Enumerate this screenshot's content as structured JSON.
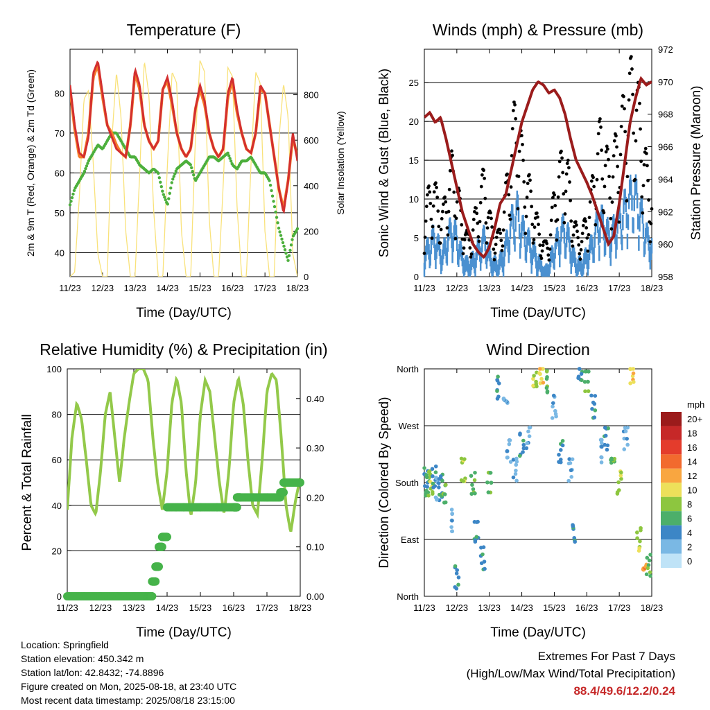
{
  "chart_data": [
    {
      "type": "line",
      "title": "Temperature (F)",
      "xlabel": "Time (Day/UTC)",
      "ylabel": "2m & 9m T (Red, Orange) & 2m Td (Green)",
      "y2label": "Solar Insolation (Yellow)",
      "x_ticks": [
        "11/23",
        "12/23",
        "13/23",
        "14/23",
        "15/23",
        "16/23",
        "17/23",
        "18/23"
      ],
      "ylim": [
        34,
        91
      ],
      "yticks": [
        40,
        50,
        60,
        70,
        80
      ],
      "y2lim": [
        0,
        1000
      ],
      "y2ticks": [
        0,
        200,
        400,
        600,
        800
      ],
      "grid": true,
      "colors": {
        "t2m": "#d32f2f",
        "t9m": "#f57c2a",
        "td2m": "#4caf3c",
        "solar": "#f9e27a"
      },
      "series": [
        {
          "axis": "left",
          "values": [
            82,
            72,
            65,
            64,
            69,
            85,
            88,
            80,
            72,
            69,
            66,
            65,
            64,
            72,
            86,
            82,
            72,
            68,
            66,
            68,
            81,
            84,
            78,
            70,
            66,
            64,
            66,
            76,
            82,
            78,
            70,
            66,
            64,
            66,
            80,
            84,
            76,
            70,
            66,
            65,
            70,
            82,
            80,
            72,
            64,
            56,
            50,
            58,
            70,
            63
          ]
        },
        {
          "axis": "left",
          "values": [
            81,
            71,
            64,
            64,
            70,
            84,
            87,
            79,
            72,
            70,
            67,
            65,
            64,
            72,
            85,
            81,
            72,
            68,
            66,
            68,
            81,
            83,
            77,
            70,
            66,
            64,
            66,
            76,
            81,
            77,
            70,
            66,
            64,
            66,
            79,
            83,
            75,
            70,
            66,
            65,
            70,
            81,
            80,
            72,
            64,
            56,
            51,
            58,
            69,
            64
          ]
        },
        {
          "axis": "left",
          "values": [
            52,
            56,
            58,
            60,
            63,
            65,
            67,
            66,
            68,
            70,
            70,
            68,
            66,
            64,
            64,
            62,
            61,
            60,
            61,
            60,
            55,
            52,
            58,
            61,
            62,
            63,
            62,
            58,
            60,
            62,
            64,
            64,
            63,
            64,
            65,
            62,
            61,
            63,
            63,
            64,
            62,
            60,
            60,
            58,
            52,
            46,
            42,
            38,
            44,
            46
          ]
        },
        {
          "axis": "right",
          "values": [
            0,
            20,
            350,
            780,
            820,
            500,
            100,
            0,
            0,
            600,
            900,
            700,
            200,
            0,
            0,
            450,
            950,
            800,
            300,
            0,
            0,
            500,
            900,
            850,
            200,
            0,
            0,
            600,
            950,
            900,
            250,
            0,
            0,
            400,
            920,
            880,
            300,
            0,
            0,
            500,
            900,
            850,
            200,
            0,
            0,
            600,
            850,
            700,
            100,
            0
          ]
        }
      ]
    },
    {
      "type": "scatter",
      "title": "Winds (mph) & Pressure (mb)",
      "xlabel": "Time (Day/UTC)",
      "ylabel": "Sonic Wind & Gust (Blue, Black)",
      "y2label": "Station Pressure (Maroon)",
      "x_ticks": [
        "11/23",
        "12/23",
        "13/23",
        "14/23",
        "15/23",
        "16/23",
        "17/23",
        "18/23"
      ],
      "ylim": [
        0,
        29.3
      ],
      "yticks": [
        0,
        5,
        10,
        15,
        20,
        25
      ],
      "y2lim": [
        958,
        972
      ],
      "y2ticks": [
        958,
        960,
        962,
        964,
        966,
        968,
        970,
        972
      ],
      "grid": true,
      "colors": {
        "wind": "#4a90d0",
        "gust": "#000000",
        "pressure": "#9b1c1c"
      },
      "series": [
        {
          "axis": "left",
          "values": [
            3,
            4,
            5,
            4,
            3,
            5,
            6,
            5,
            3,
            2,
            2,
            3,
            4,
            5,
            3,
            2,
            2,
            3,
            5,
            7,
            8,
            6,
            5,
            4,
            3,
            2,
            1,
            2,
            4,
            5,
            6,
            5,
            3,
            2,
            2,
            3,
            4,
            6,
            7,
            6,
            5,
            6,
            7,
            8,
            9,
            10,
            9,
            7,
            5,
            4
          ]
        },
        {
          "axis": "left",
          "values": [
            6,
            8,
            9,
            7,
            6,
            9,
            11,
            9,
            6,
            4,
            4,
            6,
            8,
            10,
            6,
            4,
            4,
            6,
            10,
            14,
            17,
            12,
            10,
            8,
            6,
            4,
            3,
            4,
            8,
            10,
            12,
            10,
            6,
            4,
            4,
            6,
            8,
            12,
            14,
            12,
            10,
            12,
            14,
            16,
            18,
            20,
            17,
            14,
            10,
            8
          ]
        },
        {
          "axis": "right",
          "values": [
            967.8,
            968.1,
            967.5,
            967.8,
            966.5,
            965,
            963.5,
            962,
            961,
            960,
            959.5,
            959.2,
            959.8,
            961,
            962.5,
            963,
            964.5,
            966,
            967.5,
            968.5,
            969.5,
            970,
            969.8,
            969.3,
            969.5,
            969,
            968,
            966.5,
            965.2,
            964.5,
            963.8,
            963,
            962,
            961,
            960,
            960.5,
            962.5,
            965,
            967.5,
            969,
            970.2,
            969.8,
            970
          ]
        }
      ]
    },
    {
      "type": "line",
      "title": "Relative Humidity (%) & Precipitation (in)",
      "xlabel": "Time (Day/UTC)",
      "ylabel": "Percent & Total Rainfall",
      "x_ticks": [
        "11/23",
        "12/23",
        "13/23",
        "14/23",
        "15/23",
        "16/23",
        "17/23",
        "18/23"
      ],
      "ylim": [
        0,
        100
      ],
      "yticks": [
        0,
        20,
        40,
        60,
        80,
        100
      ],
      "y2lim": [
        0,
        0.46
      ],
      "y2ticks": [
        "0.00",
        "0.10",
        "0.20",
        "0.30",
        "0.40"
      ],
      "grid": true,
      "colors": {
        "rh": "#93c94a",
        "precip": "#46b34a"
      },
      "series": [
        {
          "axis": "left",
          "values": [
            38,
            70,
            85,
            78,
            60,
            40,
            36,
            55,
            80,
            90,
            70,
            50,
            70,
            85,
            98,
            100,
            100,
            95,
            70,
            50,
            38,
            55,
            85,
            96,
            85,
            55,
            35,
            50,
            80,
            95,
            90,
            70,
            50,
            36,
            55,
            85,
            96,
            85,
            60,
            40,
            36,
            60,
            90,
            98,
            95,
            70,
            40,
            28,
            42,
            52
          ]
        },
        {
          "axis": "right",
          "x": [
            0,
            0.5,
            1,
            1.5,
            2,
            2.4,
            2.55,
            2.65,
            2.75,
            2.85,
            3.0,
            3.5,
            4.0,
            4.5,
            5.0,
            5.1,
            5.2,
            5.6,
            6.0,
            6.4,
            6.5,
            7.0
          ],
          "values": [
            0,
            0,
            0,
            0,
            0,
            0,
            0.03,
            0.06,
            0.1,
            0.12,
            0.18,
            0.18,
            0.18,
            0.18,
            0.18,
            0.2,
            0.2,
            0.2,
            0.2,
            0.21,
            0.23,
            0.23
          ]
        }
      ]
    },
    {
      "type": "scatter",
      "title": "Wind Direction",
      "xlabel": "Time (Day/UTC)",
      "ylabel": "Direction (Colored By Speed)",
      "x_ticks": [
        "11/23",
        "12/23",
        "13/23",
        "14/23",
        "15/23",
        "16/23",
        "17/23",
        "18/23"
      ],
      "ylim": [
        0,
        360
      ],
      "ytick_labels": [
        "North",
        "East",
        "South",
        "West",
        "North"
      ],
      "yticks": [
        0,
        90,
        180,
        270,
        360
      ],
      "grid": true,
      "points": [
        [
          0.05,
          185
        ],
        [
          0.1,
          175
        ],
        [
          0.2,
          180
        ],
        [
          0.3,
          190
        ],
        [
          0.4,
          170
        ],
        [
          0.5,
          175
        ],
        [
          0.6,
          165
        ],
        [
          0.8,
          120
        ],
        [
          1.0,
          30
        ],
        [
          1.2,
          200
        ],
        [
          1.5,
          180
        ],
        [
          1.6,
          100
        ],
        [
          1.8,
          60
        ],
        [
          2.0,
          180
        ],
        [
          2.3,
          330
        ],
        [
          2.5,
          300
        ],
        [
          2.6,
          230
        ],
        [
          2.8,
          200
        ],
        [
          3.0,
          240
        ],
        [
          3.2,
          250
        ],
        [
          3.4,
          350
        ],
        [
          3.6,
          355
        ],
        [
          3.8,
          340
        ],
        [
          4.0,
          300
        ],
        [
          4.2,
          230
        ],
        [
          4.5,
          200
        ],
        [
          4.6,
          100
        ],
        [
          4.8,
          360
        ],
        [
          5.0,
          340
        ],
        [
          5.2,
          300
        ],
        [
          5.4,
          230
        ],
        [
          5.6,
          250
        ],
        [
          5.8,
          200
        ],
        [
          6.0,
          180
        ],
        [
          6.2,
          250
        ],
        [
          6.4,
          355
        ],
        [
          6.6,
          90
        ],
        [
          6.8,
          60
        ],
        [
          6.9,
          50
        ]
      ],
      "point_speeds": [
        4,
        6,
        8,
        4,
        2,
        4,
        6,
        2,
        4,
        8,
        6,
        4,
        4,
        6,
        4,
        2,
        2,
        2,
        4,
        2,
        8,
        10,
        6,
        2,
        4,
        2,
        4,
        4,
        6,
        4,
        2,
        4,
        6,
        8,
        2,
        10,
        8,
        12,
        6
      ],
      "colorbar": {
        "label": "mph",
        "levels": [
          "20+",
          "18",
          "16",
          "14",
          "12",
          "10",
          "8",
          "6",
          "4",
          "2",
          "0"
        ],
        "colors": [
          "#9b1b1b",
          "#c62828",
          "#e43c2c",
          "#f26a2e",
          "#f9a640",
          "#ede05a",
          "#8dc63f",
          "#4caf6a",
          "#3c86c6",
          "#7ab8e4",
          "#bfe3f7"
        ]
      }
    }
  ],
  "info": {
    "location": "Location: Springfield",
    "elevation": "Station elevation: 450.342 m",
    "latlon": "Station lat/lon: 42.8432; -74.8896",
    "created": "Figure created on Mon, 2025-08-18, at 23:40 UTC",
    "recent": "Most recent data timestamp: 2025/08/18 23:15:00"
  },
  "extremes": {
    "title": "Extremes For Past 7 Days",
    "subtitle": "(High/Low/Max Wind/Total Precipitation)",
    "values": "88.4/49.6/12.2/0.24"
  }
}
